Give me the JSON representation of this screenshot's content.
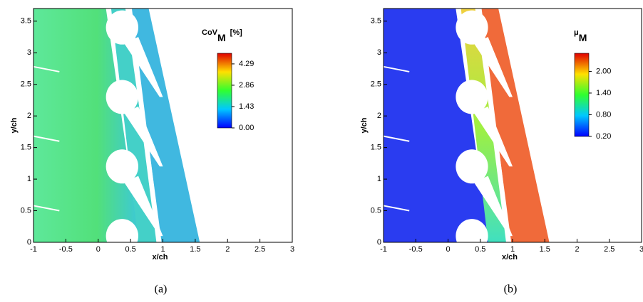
{
  "chart_data": [
    {
      "type": "contour",
      "title": "CoV",
      "title_subscript": "M",
      "title_suffix": "[%]",
      "xlabel": "x/ch",
      "ylabel": "y/ch",
      "caption": "(a)",
      "xlim": [
        -1,
        3
      ],
      "ylim": [
        0,
        3.7
      ],
      "xticks": [
        -1,
        -0.5,
        0,
        0.5,
        1,
        1.5,
        2,
        2.5,
        3
      ],
      "yticks": [
        0,
        0.5,
        1,
        1.5,
        2,
        2.5,
        3,
        3.5
      ],
      "colormap": "jet",
      "colorbar": {
        "lim": [
          0,
          5
        ],
        "ticks": [
          {
            "value": 0,
            "label": "0.00"
          },
          1.43,
          2.86,
          4.29
        ]
      }
    },
    {
      "type": "contour",
      "title": "μ",
      "title_subscript": "M",
      "xlabel": "x/ch",
      "ylabel": "y/ch",
      "caption": "(b)",
      "xlim": [
        -1,
        3
      ],
      "ylim": [
        0,
        3.7
      ],
      "xticks": [
        -1,
        -0.5,
        0,
        0.5,
        1,
        1.5,
        2,
        2.5,
        3
      ],
      "yticks": [
        0,
        0.5,
        1,
        1.5,
        2,
        2.5,
        3,
        3.5
      ],
      "colormap": "jet",
      "colorbar": {
        "lim": [
          0.2,
          2.5
        ],
        "ticks": [
          {
            "value": 0.2,
            "label": "0.20"
          },
          {
            "value": 0.8,
            "label": "0.80"
          },
          {
            "value": 1.4,
            "label": "1.40"
          },
          {
            "value": 2,
            "label": "2.00"
          }
        ]
      }
    }
  ]
}
